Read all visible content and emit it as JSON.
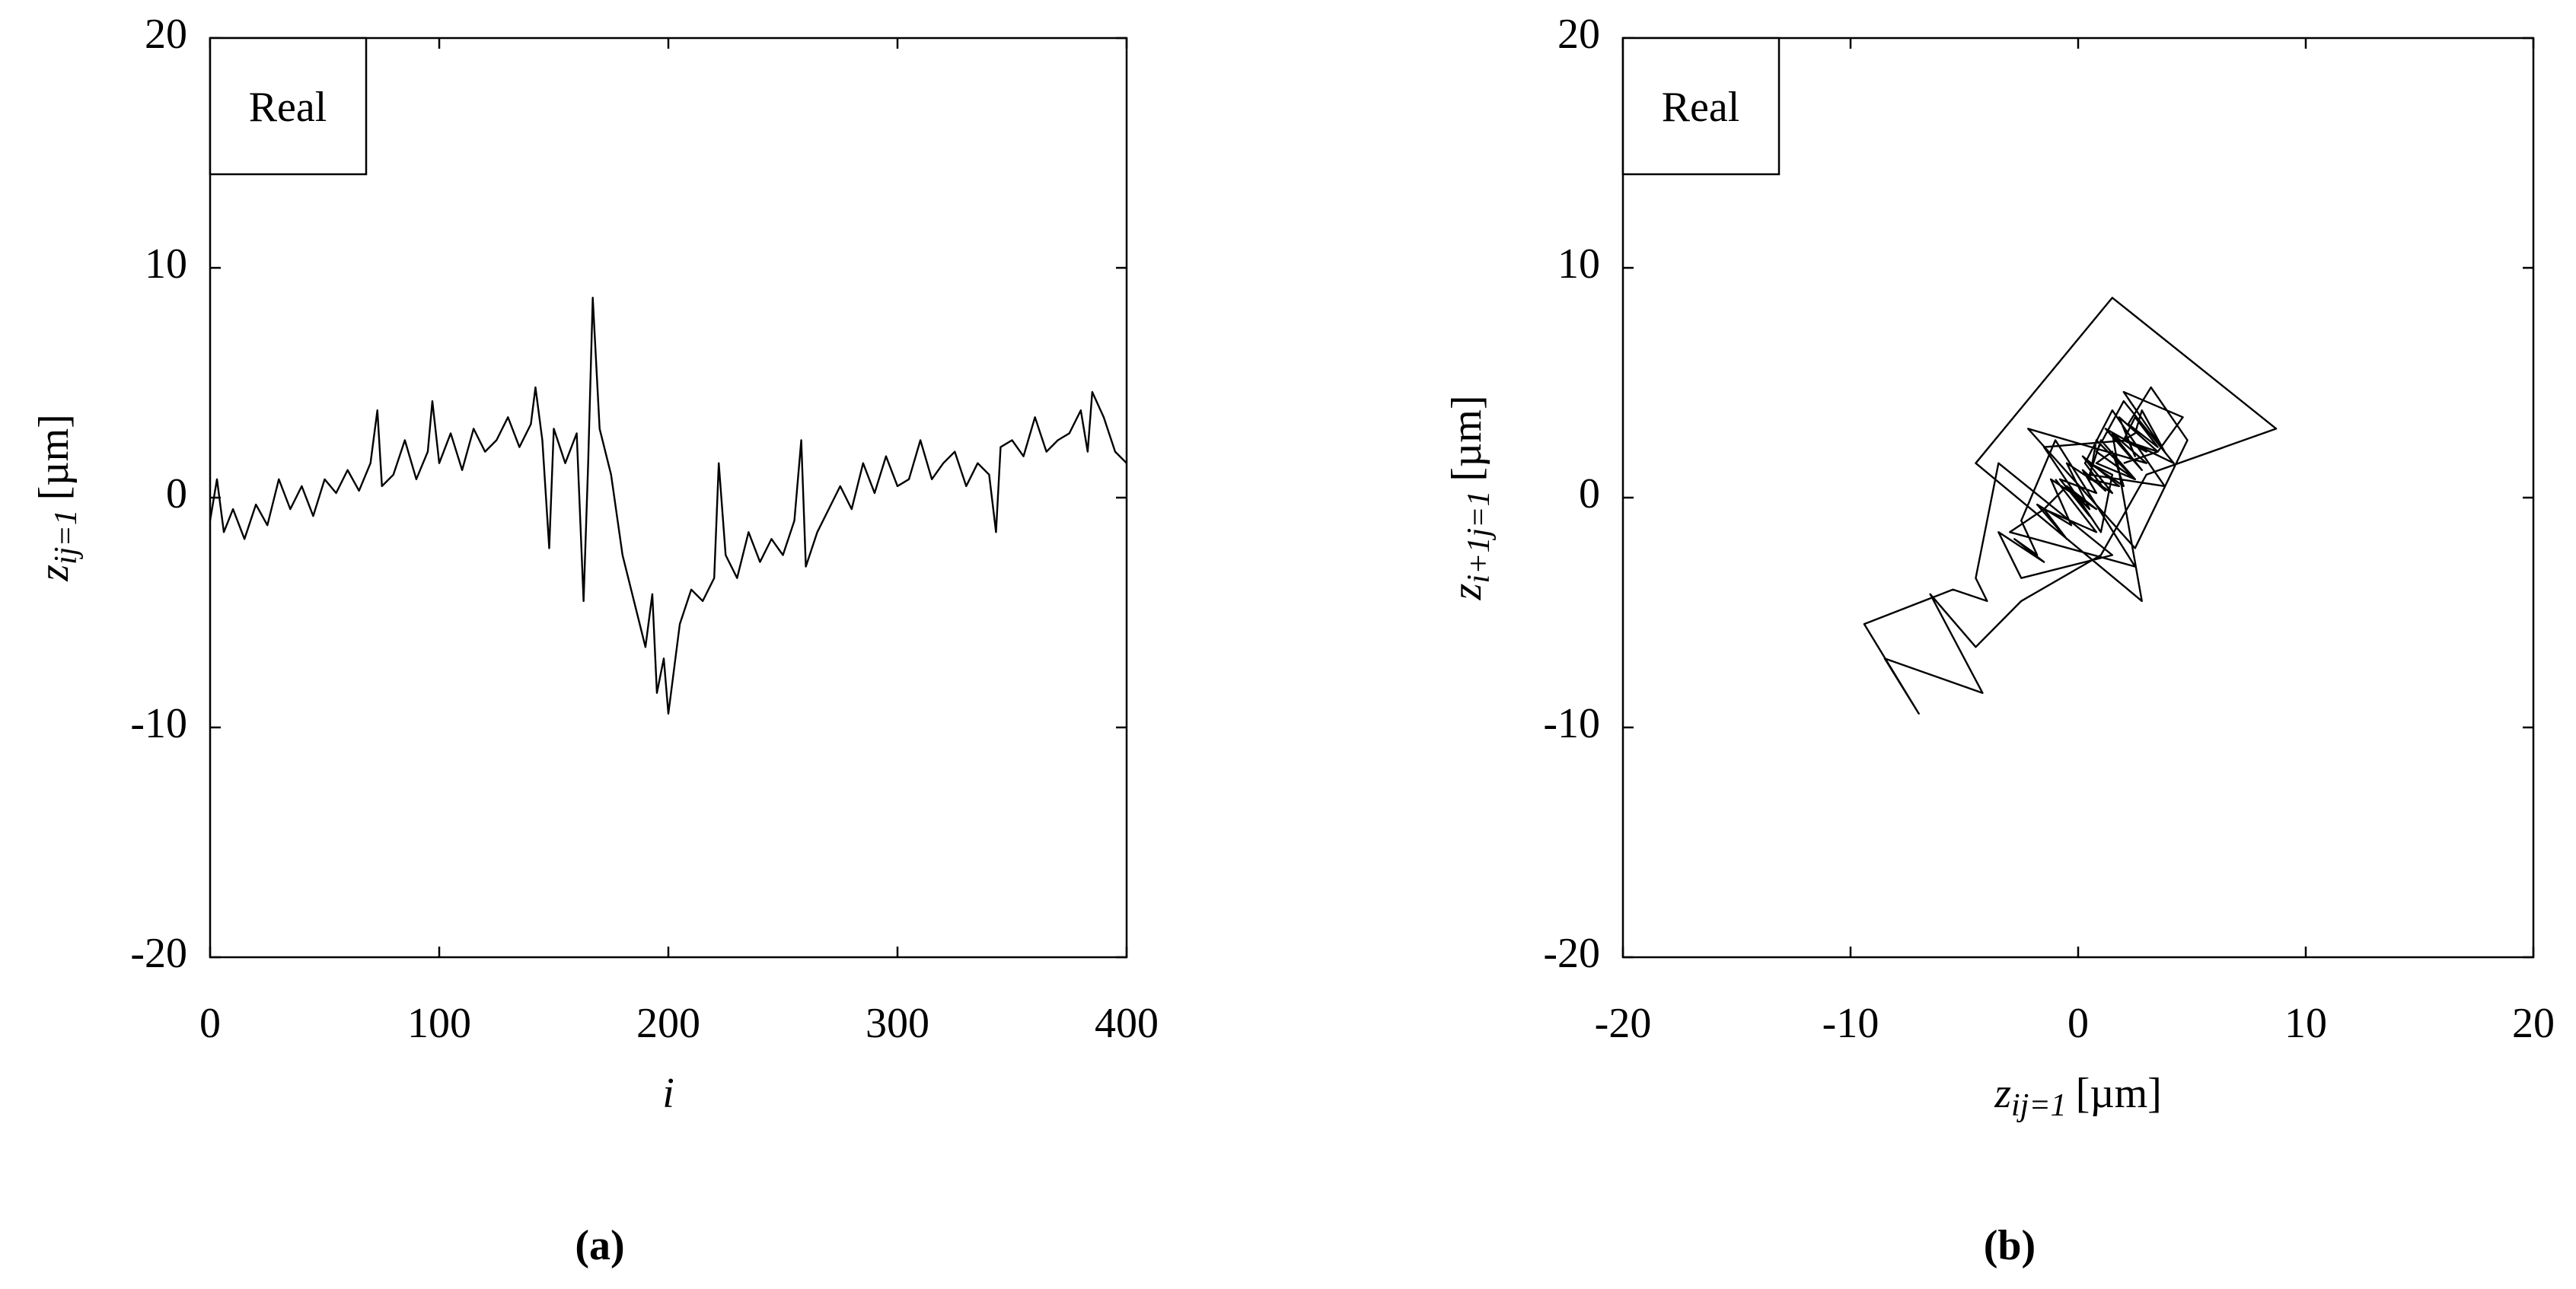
{
  "chart_data": [
    {
      "type": "line",
      "caption": "(a)",
      "annotation": "Real",
      "xlabel": {
        "main": "i"
      },
      "ylabel": {
        "main": "z",
        "sub": "ij=1",
        "unit": "[µm]"
      },
      "xlim": [
        0,
        400
      ],
      "xticks": [
        0,
        100,
        200,
        300,
        400
      ],
      "ylim": [
        -20,
        20
      ],
      "yticks": [
        -20,
        -10,
        0,
        10,
        20
      ],
      "color": "#000000",
      "x": [
        0,
        3,
        6,
        10,
        15,
        20,
        25,
        30,
        35,
        40,
        45,
        50,
        55,
        60,
        65,
        70,
        73,
        75,
        80,
        85,
        90,
        95,
        97,
        100,
        105,
        110,
        115,
        120,
        125,
        130,
        135,
        140,
        142,
        145,
        148,
        150,
        155,
        160,
        163,
        165,
        167,
        170,
        175,
        180,
        185,
        190,
        193,
        195,
        198,
        200,
        205,
        210,
        215,
        220,
        222,
        225,
        230,
        235,
        240,
        245,
        250,
        255,
        258,
        260,
        265,
        270,
        275,
        280,
        285,
        290,
        295,
        300,
        305,
        310,
        315,
        320,
        325,
        330,
        335,
        340,
        343,
        345,
        350,
        355,
        360,
        365,
        370,
        375,
        380,
        383,
        385,
        390,
        395,
        400
      ],
      "values": [
        -1,
        0.8,
        -1.5,
        -0.5,
        -1.8,
        -0.3,
        -1.2,
        0.8,
        -0.5,
        0.5,
        -0.8,
        0.8,
        0.2,
        1.2,
        0.3,
        1.5,
        3.8,
        0.5,
        1.0,
        2.5,
        0.8,
        2.0,
        4.2,
        1.5,
        2.8,
        1.2,
        3.0,
        2.0,
        2.5,
        3.5,
        2.2,
        3.2,
        4.8,
        2.5,
        -2.2,
        3.0,
        1.5,
        2.8,
        -4.5,
        1.5,
        8.7,
        3.0,
        1.0,
        -2.5,
        -4.5,
        -6.5,
        -4.2,
        -8.5,
        -7,
        -9.4,
        -5.5,
        -4.0,
        -4.5,
        -3.5,
        1.5,
        -2.5,
        -3.5,
        -1.5,
        -2.8,
        -1.8,
        -2.5,
        -1.0,
        2.5,
        -3.0,
        -1.5,
        -0.5,
        0.5,
        -0.5,
        1.5,
        0.2,
        1.8,
        0.5,
        0.8,
        2.5,
        0.8,
        1.5,
        2.0,
        0.5,
        1.5,
        1.0,
        -1.5,
        2.2,
        2.5,
        1.8,
        3.5,
        2.0,
        2.5,
        2.8,
        3.8,
        2.0,
        4.6,
        3.5,
        2.0,
        1.5
      ]
    },
    {
      "type": "line",
      "caption": "(b)",
      "annotation": "Real",
      "xlabel": {
        "main": "z",
        "sub": "ij=1",
        "unit": "[µm]"
      },
      "ylabel": {
        "main": "z",
        "sub": "i+1j=1",
        "unit": "[µm]"
      },
      "xlim": [
        -20,
        20
      ],
      "xticks": [
        -20,
        -10,
        0,
        10,
        20
      ],
      "ylim": [
        -20,
        20
      ],
      "yticks": [
        -20,
        -10,
        0,
        10,
        20
      ],
      "color": "#000000",
      "x": [
        -1,
        0.8,
        -1.5,
        -0.5,
        -1.8,
        -0.3,
        -1.2,
        0.8,
        -0.5,
        0.5,
        -0.8,
        0.8,
        0.2,
        1.2,
        0.3,
        1.5,
        3.8,
        0.5,
        1.0,
        2.5,
        0.8,
        2.0,
        4.2,
        1.5,
        2.8,
        1.2,
        3.0,
        2.0,
        2.5,
        3.5,
        2.2,
        3.2,
        4.8,
        2.5,
        -2.2,
        3.0,
        1.5,
        2.8,
        -4.5,
        1.5,
        8.7,
        3.0,
        1.0,
        -2.5,
        -4.5,
        -6.5,
        -4.2,
        -8.5,
        -7,
        -9.4,
        -5.5,
        -4.0,
        -4.5,
        -3.5,
        1.5,
        -2.5,
        -3.5,
        -1.5,
        -2.8,
        -1.8,
        -2.5,
        -1.0,
        2.5,
        -3.0,
        -1.5,
        -0.5,
        0.5,
        -0.5,
        1.5,
        0.2,
        1.8,
        0.5,
        0.8,
        2.5,
        0.8,
        1.5,
        2.0,
        0.5,
        1.5,
        1.0,
        -1.5,
        2.2,
        2.5,
        1.8,
        3.5,
        2.0,
        2.5,
        2.8,
        3.8,
        2.0,
        4.6,
        3.5,
        2.0
      ],
      "values": [
        0.8,
        -1.5,
        -0.5,
        -1.8,
        -0.3,
        -1.2,
        0.8,
        -0.5,
        0.5,
        -0.8,
        0.8,
        0.2,
        1.2,
        0.3,
        1.5,
        3.8,
        0.5,
        1.0,
        2.5,
        0.8,
        2.0,
        4.2,
        1.5,
        2.8,
        1.2,
        3.0,
        2.0,
        2.5,
        3.5,
        2.2,
        3.2,
        4.8,
        2.5,
        -2.2,
        3.0,
        1.5,
        2.8,
        -4.5,
        1.5,
        8.7,
        3.0,
        1.0,
        -2.5,
        -4.5,
        -6.5,
        -4.2,
        -8.5,
        -7,
        -9.4,
        -5.5,
        -4.0,
        -4.5,
        -3.5,
        1.5,
        -2.5,
        -3.5,
        -1.5,
        -2.8,
        -1.8,
        -2.5,
        -1.0,
        2.5,
        -3.0,
        -1.5,
        -0.5,
        0.5,
        -0.5,
        1.5,
        0.2,
        1.8,
        0.5,
        0.8,
        2.5,
        0.8,
        1.5,
        2.0,
        0.5,
        1.5,
        1.0,
        -1.5,
        2.2,
        2.5,
        1.8,
        3.5,
        2.0,
        2.5,
        2.8,
        3.8,
        2.0,
        4.6,
        3.5,
        2.0,
        1.5
      ]
    }
  ]
}
